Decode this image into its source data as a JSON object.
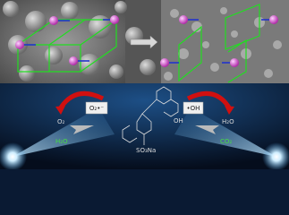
{
  "labels": {
    "o2": "O₂",
    "superoxide": "O₂•⁻",
    "hydroxyl": "•OH",
    "h2o_top": "H₂O",
    "h2o_bottom": "H₂O",
    "co2": "CO₂",
    "sulfonate": "SO₃Na",
    "hydroxy_group": "OH"
  }
}
